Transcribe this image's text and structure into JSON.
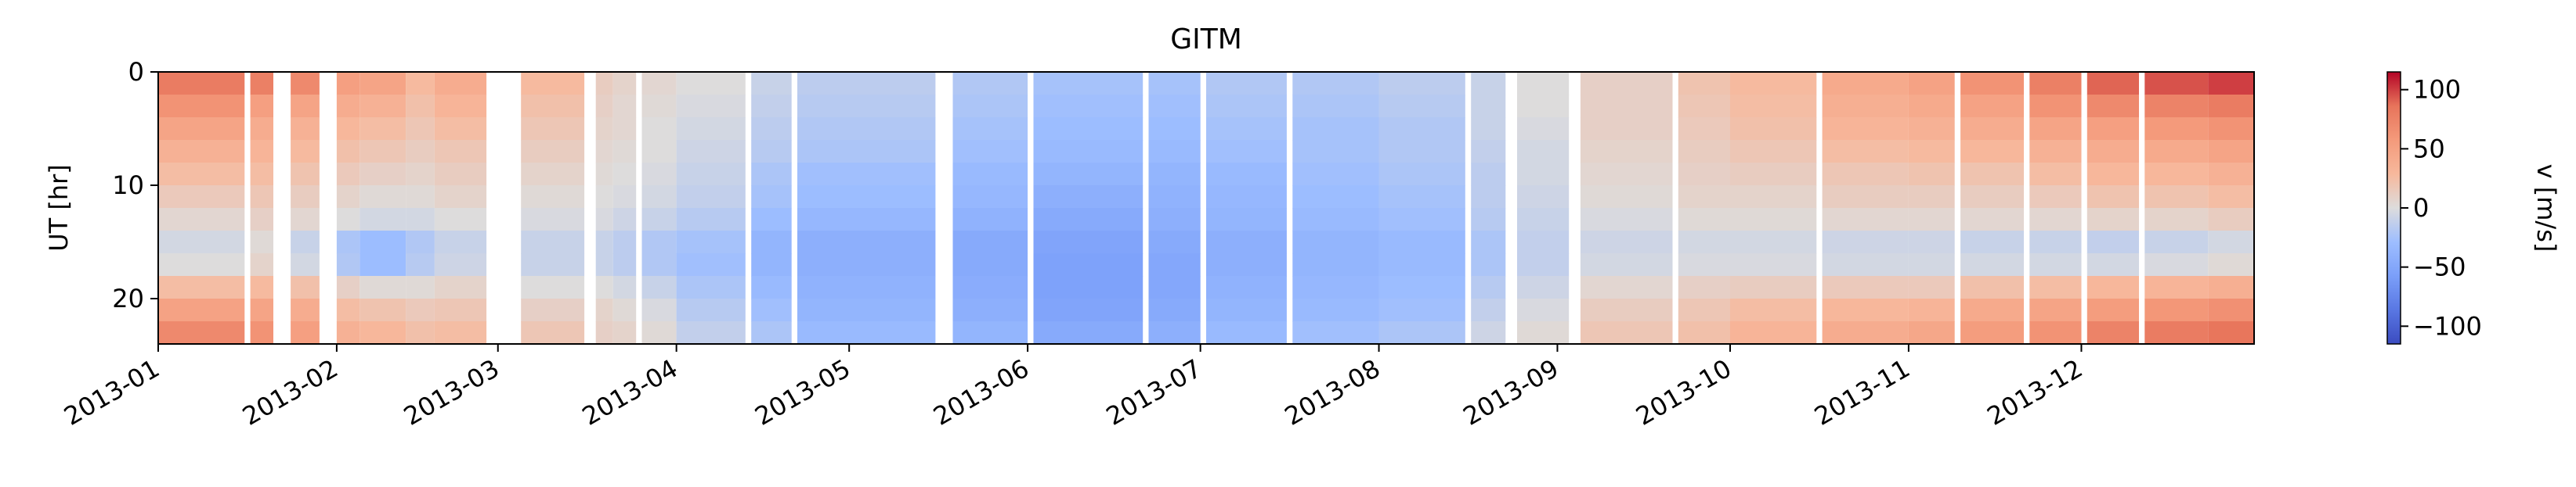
{
  "chart_data": {
    "type": "heatmap",
    "title": "GITM",
    "xlabel": "",
    "ylabel": "UT [hr]",
    "colorbar_label": "v [m/s]",
    "colormap": "coolwarm",
    "vmin": -115,
    "vmax": 115,
    "x_range": [
      "2013-01-01",
      "2013-12-31"
    ],
    "xticks": [
      "2013-01",
      "2013-02",
      "2013-03",
      "2013-04",
      "2013-05",
      "2013-06",
      "2013-07",
      "2013-08",
      "2013-09",
      "2013-10",
      "2013-11",
      "2013-12"
    ],
    "ylim": [
      0,
      24
    ],
    "y_inverted": true,
    "yticks": [
      0,
      10,
      20
    ],
    "colorbar_ticks": [
      100,
      50,
      0,
      -50,
      -100
    ],
    "grid": false,
    "ut_hours": [
      0,
      2,
      4,
      6,
      8,
      10,
      12,
      14,
      16,
      18,
      20,
      22,
      24
    ],
    "segments": [
      {
        "start": "2013-01-01",
        "end": "2013-01-15",
        "profile": [
          90,
          70,
          55,
          40,
          30,
          20,
          10,
          0,
          -10,
          10,
          40,
          60,
          80
        ]
      },
      {
        "start": "2013-01-17",
        "end": "2013-01-20",
        "profile": [
          95,
          60,
          45,
          35,
          30,
          20,
          15,
          5,
          0,
          15,
          40,
          55,
          70
        ]
      },
      {
        "start": "2013-01-24",
        "end": "2013-01-28",
        "profile": [
          85,
          55,
          40,
          30,
          25,
          15,
          10,
          0,
          -20,
          10,
          35,
          45,
          60
        ]
      },
      {
        "start": "2013-02-01",
        "end": "2013-02-04",
        "profile": [
          60,
          45,
          35,
          25,
          20,
          10,
          5,
          -5,
          -40,
          0,
          20,
          30,
          40
        ]
      },
      {
        "start": "2013-02-05",
        "end": "2013-02-12",
        "profile": [
          55,
          40,
          30,
          20,
          15,
          5,
          0,
          -10,
          -50,
          -10,
          15,
          25,
          35
        ]
      },
      {
        "start": "2013-02-13",
        "end": "2013-02-17",
        "profile": [
          30,
          25,
          20,
          15,
          10,
          5,
          0,
          -10,
          -30,
          -5,
          10,
          20,
          25
        ]
      },
      {
        "start": "2013-02-18",
        "end": "2013-02-26",
        "profile": [
          45,
          35,
          30,
          20,
          15,
          10,
          5,
          -5,
          -15,
          0,
          15,
          20,
          30
        ]
      },
      {
        "start": "2013-03-05",
        "end": "2013-03-15",
        "profile": [
          30,
          25,
          20,
          15,
          10,
          5,
          0,
          -5,
          -15,
          -5,
          5,
          15,
          20
        ]
      },
      {
        "start": "2013-03-18",
        "end": "2013-03-20",
        "profile": [
          15,
          10,
          10,
          5,
          5,
          0,
          0,
          -5,
          -15,
          -5,
          5,
          10,
          10
        ]
      },
      {
        "start": "2013-03-21",
        "end": "2013-03-24",
        "profile": [
          10,
          5,
          5,
          5,
          0,
          0,
          -5,
          -10,
          -20,
          -10,
          0,
          5,
          10
        ]
      },
      {
        "start": "2013-03-26",
        "end": "2013-03-31",
        "profile": [
          5,
          5,
          0,
          0,
          0,
          -5,
          -5,
          -15,
          -25,
          -15,
          -5,
          0,
          5
        ]
      },
      {
        "start": "2013-04-01",
        "end": "2013-04-12",
        "profile": [
          0,
          0,
          -5,
          -5,
          -10,
          -10,
          -15,
          -20,
          -30,
          -25,
          -20,
          -15,
          -10
        ]
      },
      {
        "start": "2013-04-14",
        "end": "2013-04-20",
        "profile": [
          -10,
          -10,
          -15,
          -15,
          -20,
          -25,
          -25,
          -35,
          -40,
          -35,
          -30,
          -25,
          -20
        ]
      },
      {
        "start": "2013-04-22",
        "end": "2013-05-15",
        "profile": [
          -15,
          -15,
          -20,
          -20,
          -25,
          -30,
          -30,
          -40,
          -45,
          -40,
          -40,
          -35,
          -30
        ]
      },
      {
        "start": "2013-05-19",
        "end": "2013-05-31",
        "profile": [
          -20,
          -20,
          -25,
          -25,
          -30,
          -35,
          -35,
          -45,
          -50,
          -45,
          -45,
          -40,
          -35
        ]
      },
      {
        "start": "2013-06-02",
        "end": "2013-06-20",
        "profile": [
          -25,
          -25,
          -30,
          -30,
          -35,
          -40,
          -45,
          -50,
          -55,
          -55,
          -55,
          -50,
          -45
        ]
      },
      {
        "start": "2013-06-22",
        "end": "2013-06-30",
        "profile": [
          -25,
          -25,
          -30,
          -30,
          -35,
          -40,
          -40,
          -45,
          -50,
          -50,
          -50,
          -45,
          -40
        ]
      },
      {
        "start": "2013-07-02",
        "end": "2013-07-15",
        "profile": [
          -20,
          -20,
          -25,
          -25,
          -30,
          -35,
          -35,
          -40,
          -45,
          -40,
          -40,
          -35,
          -30
        ]
      },
      {
        "start": "2013-07-17",
        "end": "2013-07-31",
        "profile": [
          -20,
          -20,
          -25,
          -25,
          -25,
          -30,
          -30,
          -35,
          -40,
          -35,
          -35,
          -30,
          -25
        ]
      },
      {
        "start": "2013-08-01",
        "end": "2013-08-15",
        "profile": [
          -15,
          -15,
          -20,
          -20,
          -20,
          -25,
          -25,
          -30,
          -35,
          -30,
          -30,
          -25,
          -20
        ]
      },
      {
        "start": "2013-08-17",
        "end": "2013-08-22",
        "profile": [
          -10,
          -10,
          -10,
          -10,
          -15,
          -15,
          -15,
          -20,
          -25,
          -20,
          -15,
          -10,
          -5
        ]
      },
      {
        "start": "2013-08-25",
        "end": "2013-09-02",
        "profile": [
          0,
          0,
          0,
          -5,
          -5,
          -5,
          -10,
          -10,
          -15,
          -10,
          -5,
          0,
          5
        ]
      },
      {
        "start": "2013-09-05",
        "end": "2013-09-20",
        "profile": [
          10,
          10,
          10,
          10,
          5,
          5,
          0,
          -5,
          -10,
          0,
          10,
          15,
          20
        ]
      },
      {
        "start": "2013-09-22",
        "end": "2013-09-30",
        "profile": [
          20,
          20,
          15,
          15,
          10,
          10,
          5,
          0,
          -10,
          5,
          15,
          20,
          25
        ]
      },
      {
        "start": "2013-10-01",
        "end": "2013-10-15",
        "profile": [
          30,
          25,
          25,
          20,
          15,
          10,
          5,
          0,
          -10,
          5,
          20,
          30,
          35
        ]
      },
      {
        "start": "2013-10-17",
        "end": "2013-10-31",
        "profile": [
          45,
          40,
          35,
          30,
          20,
          15,
          10,
          0,
          -15,
          5,
          25,
          35,
          45
        ]
      },
      {
        "start": "2013-11-01",
        "end": "2013-11-08",
        "profile": [
          55,
          45,
          40,
          30,
          25,
          15,
          10,
          0,
          -15,
          5,
          25,
          40,
          50
        ]
      },
      {
        "start": "2013-11-10",
        "end": "2013-11-20",
        "profile": [
          70,
          55,
          45,
          35,
          25,
          15,
          10,
          0,
          -20,
          10,
          35,
          50,
          60
        ]
      },
      {
        "start": "2013-11-22",
        "end": "2013-11-30",
        "profile": [
          85,
          70,
          55,
          40,
          30,
          20,
          10,
          0,
          -20,
          10,
          40,
          55,
          70
        ]
      },
      {
        "start": "2013-12-02",
        "end": "2013-12-10",
        "profile": [
          100,
          80,
          60,
          45,
          35,
          25,
          15,
          0,
          -25,
          15,
          45,
          65,
          85
        ]
      },
      {
        "start": "2013-12-12",
        "end": "2013-12-22",
        "profile": [
          105,
          85,
          65,
          50,
          35,
          25,
          15,
          0,
          -20,
          15,
          50,
          70,
          90
        ]
      },
      {
        "start": "2013-12-23",
        "end": "2013-12-31",
        "profile": [
          110,
          90,
          70,
          55,
          40,
          30,
          20,
          5,
          -15,
          20,
          55,
          75,
          95
        ]
      }
    ]
  }
}
